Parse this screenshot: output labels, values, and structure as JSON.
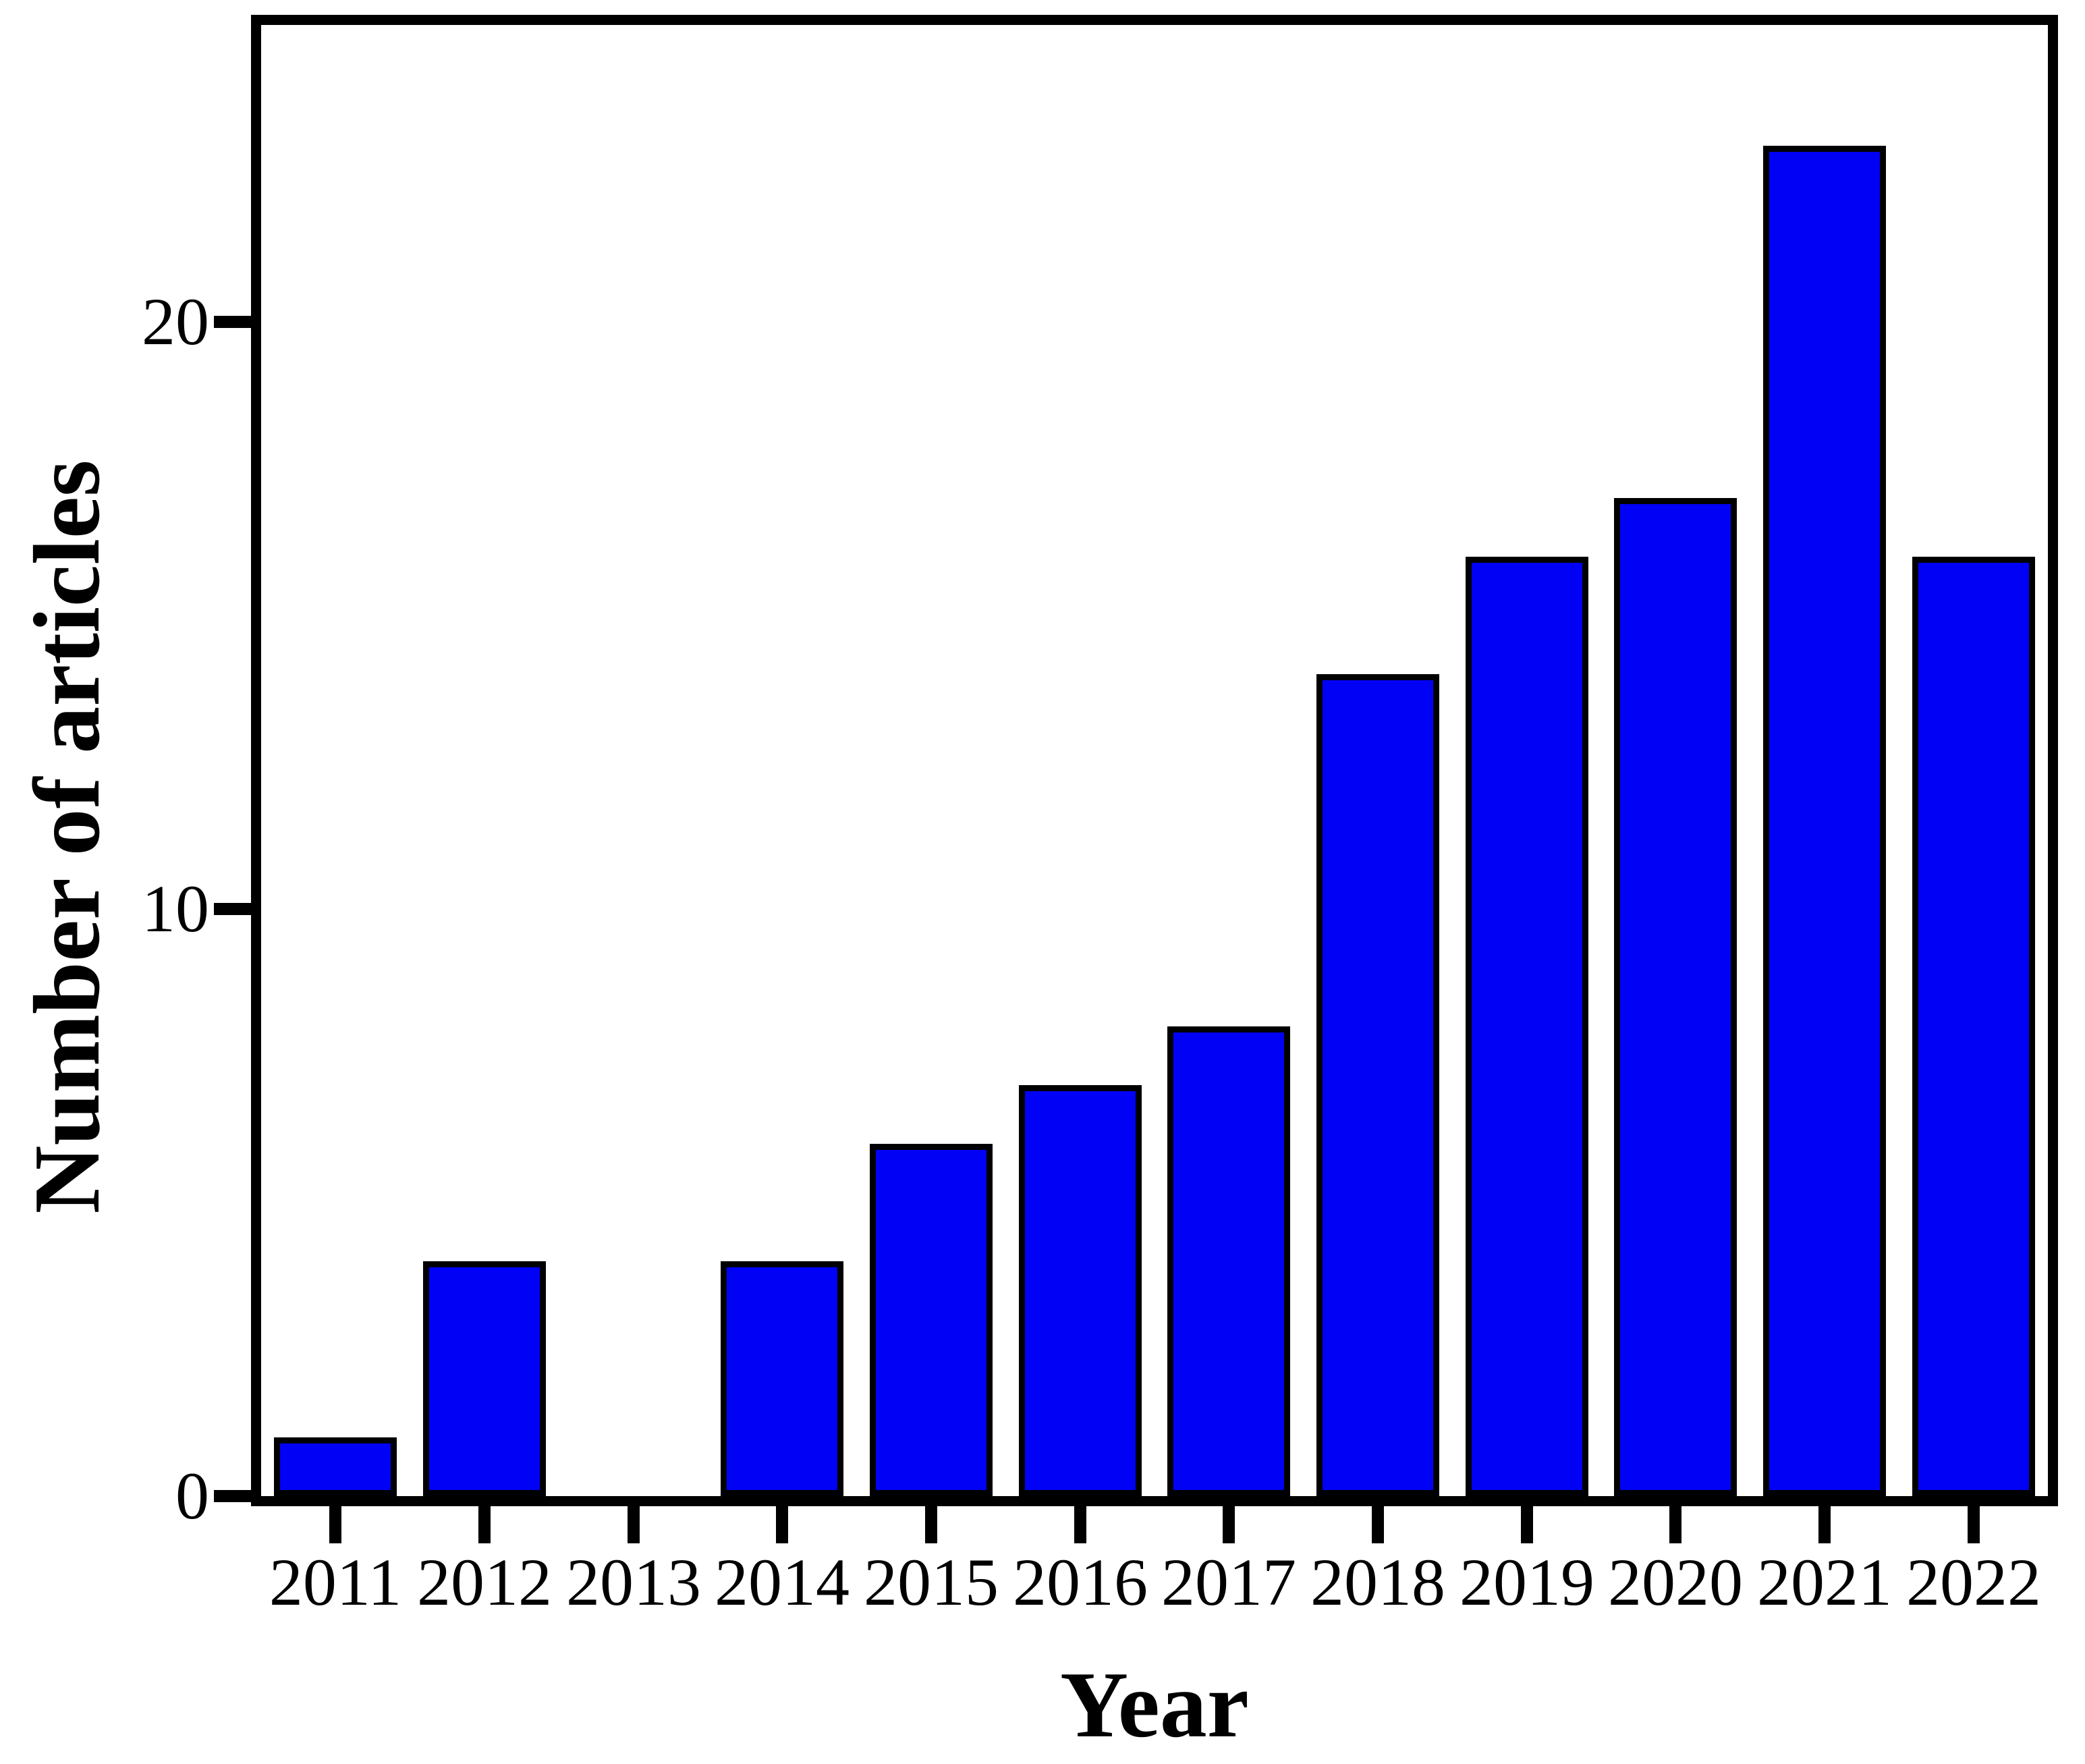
{
  "figure": {
    "background_color": "#ffffff",
    "text_color": "#000000"
  },
  "chart_data": {
    "type": "bar",
    "title": "",
    "categories": [
      "2011",
      "2012",
      "2013",
      "2014",
      "2015",
      "2016",
      "2017",
      "2018",
      "2019",
      "2020",
      "2021",
      "2022"
    ],
    "values": [
      1,
      4,
      0,
      4,
      6,
      7,
      8,
      14,
      16,
      17,
      23,
      16
    ],
    "xlabel": "Year",
    "ylabel": "Number of articles",
    "ylim": [
      0,
      25
    ],
    "yticks": [
      0,
      10,
      20
    ],
    "grid": false,
    "legend": false,
    "bar_fill_color": "#0101F5",
    "bar_border_color": "#000000",
    "axis_color": "#000000"
  }
}
